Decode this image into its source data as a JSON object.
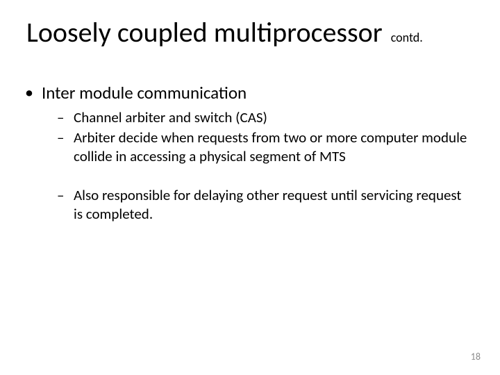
{
  "slide": {
    "title_main": "Loosely coupled multiprocessor",
    "title_sub": "contd.",
    "bullet_l1": "Inter module communication",
    "sub_bullets": {
      "b0": "Channel arbiter and switch (CAS)",
      "b1": "Arbiter decide when requests from two or more computer module collide in accessing a physical segment of MTS",
      "b2": "Also responsible for delaying other request until servicing request is completed."
    },
    "page_number": "18"
  },
  "style": {
    "background_color": "#ffffff",
    "title_fontsize_pt": 40,
    "title_sub_fontsize_pt": 18,
    "l1_fontsize_pt": 25,
    "l2_fontsize_pt": 21,
    "text_color": "#000000",
    "pagenum_color": "#8b8b8b",
    "pagenum_fontsize_pt": 14,
    "l1_marker": "•",
    "l2_marker": "–",
    "font_family": "Calibri"
  }
}
